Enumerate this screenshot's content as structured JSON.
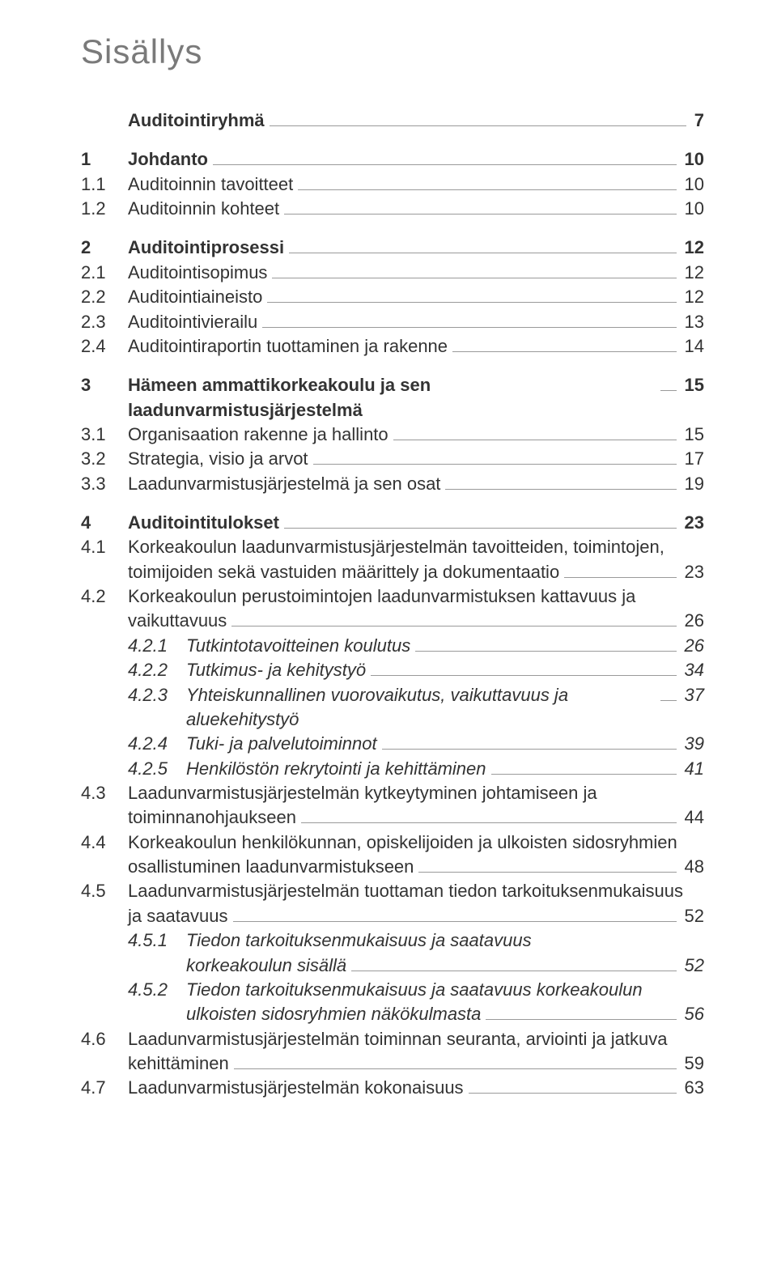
{
  "title": "Sisällys",
  "colors": {
    "title": "#7a7a7a",
    "text": "#333333",
    "leader": "#9a9a9a",
    "bg": "#ffffff"
  },
  "typography": {
    "title_fontsize": 42,
    "body_fontsize": 22,
    "line_height": 1.38
  },
  "toc": [
    {
      "type": "row",
      "bold": true,
      "num": "",
      "label": "Auditointiryhmä",
      "page": "7"
    },
    {
      "type": "spacer"
    },
    {
      "type": "row",
      "bold": true,
      "num": "1",
      "label": "Johdanto",
      "page": "10"
    },
    {
      "type": "row",
      "num": "1.1",
      "label": "Auditoinnin tavoitteet",
      "page": "10"
    },
    {
      "type": "row",
      "num": "1.2",
      "label": "Auditoinnin kohteet",
      "page": "10"
    },
    {
      "type": "spacer"
    },
    {
      "type": "row",
      "bold": true,
      "num": "2",
      "label": "Auditointiprosessi",
      "page": "12"
    },
    {
      "type": "row",
      "num": "2.1",
      "label": "Auditointisopimus",
      "page": "12"
    },
    {
      "type": "row",
      "num": "2.2",
      "label": "Auditointiaineisto",
      "page": "12"
    },
    {
      "type": "row",
      "num": "2.3",
      "label": "Auditointivierailu",
      "page": "13"
    },
    {
      "type": "row",
      "num": "2.4",
      "label": "Auditointiraportin tuottaminen ja rakenne",
      "page": "14"
    },
    {
      "type": "spacer"
    },
    {
      "type": "row",
      "bold": true,
      "num": "3",
      "label": "Hämeen ammattikorkeakoulu ja sen laadunvarmistusjärjestelmä",
      "page": "15"
    },
    {
      "type": "row",
      "num": "3.1",
      "label": "Organisaation rakenne ja hallinto",
      "page": "15"
    },
    {
      "type": "row",
      "num": "3.2",
      "label": "Strategia, visio ja arvot",
      "page": "17"
    },
    {
      "type": "row",
      "num": "3.3",
      "label": "Laadunvarmistusjärjestelmä ja sen osat",
      "page": "19"
    },
    {
      "type": "spacer"
    },
    {
      "type": "row",
      "bold": true,
      "num": "4",
      "label": "Auditointitulokset",
      "page": "23"
    },
    {
      "type": "row-noleader",
      "num": "4.1",
      "label": "Korkeakoulun laadunvarmistusjärjestelmän tavoitteiden, toimintojen,"
    },
    {
      "type": "row",
      "cont": true,
      "num": "",
      "label": "toimijoiden sekä vastuiden määrittely ja dokumentaatio",
      "page": "23"
    },
    {
      "type": "row-noleader",
      "num": "4.2",
      "label": "Korkeakoulun perustoimintojen laadunvarmistuksen kattavuus ja"
    },
    {
      "type": "row",
      "cont": true,
      "num": "",
      "label": "vaikuttavuus",
      "page": "26"
    },
    {
      "type": "row",
      "sub": true,
      "italic": true,
      "num": "4.2.1",
      "label": "Tutkintotavoitteinen koulutus",
      "page": "26"
    },
    {
      "type": "row",
      "sub": true,
      "italic": true,
      "num": "4.2.2",
      "label": "Tutkimus- ja kehitystyö",
      "page": "34"
    },
    {
      "type": "row",
      "sub": true,
      "italic": true,
      "num": "4.2.3",
      "label": "Yhteiskunnallinen vuorovaikutus, vaikuttavuus ja aluekehitystyö",
      "page": "37"
    },
    {
      "type": "row",
      "sub": true,
      "italic": true,
      "num": "4.2.4",
      "label": "Tuki- ja palvelutoiminnot",
      "page": "39"
    },
    {
      "type": "row",
      "sub": true,
      "italic": true,
      "num": "4.2.5",
      "label": "Henkilöstön rekrytointi ja kehittäminen",
      "page": "41"
    },
    {
      "type": "row-noleader",
      "num": "4.3",
      "label": "Laadunvarmistusjärjestelmän kytkeytyminen johtamiseen ja"
    },
    {
      "type": "row",
      "cont": true,
      "num": "",
      "label": "toiminnanohjaukseen",
      "page": "44"
    },
    {
      "type": "row-noleader",
      "num": "4.4",
      "label": "Korkeakoulun henkilökunnan, opiskelijoiden ja ulkoisten sidosryhmien"
    },
    {
      "type": "row",
      "cont": true,
      "num": "",
      "label": "osallistuminen laadunvarmistukseen",
      "page": "48"
    },
    {
      "type": "row-noleader",
      "num": "4.5",
      "label": "Laadunvarmistusjärjestelmän tuottaman tiedon tarkoituksenmukaisuus"
    },
    {
      "type": "row",
      "cont": true,
      "num": "",
      "label": "ja saatavuus",
      "page": "52"
    },
    {
      "type": "row-noleader",
      "sub": true,
      "italic": true,
      "num": "4.5.1",
      "label": "Tiedon tarkoituksenmukaisuus ja saatavuus"
    },
    {
      "type": "row",
      "subcont": true,
      "italic": true,
      "num": "",
      "label": "korkeakoulun sisällä",
      "page": "52"
    },
    {
      "type": "row-noleader",
      "sub": true,
      "italic": true,
      "num": "4.5.2",
      "label": "Tiedon tarkoituksenmukaisuus ja saatavuus korkeakoulun"
    },
    {
      "type": "row",
      "subcont": true,
      "italic": true,
      "num": "",
      "label": "ulkoisten sidosryhmien näkökulmasta",
      "page": "56"
    },
    {
      "type": "row-noleader",
      "num": "4.6",
      "label": "Laadunvarmistusjärjestelmän toiminnan seuranta, arviointi ja jatkuva"
    },
    {
      "type": "row",
      "cont": true,
      "num": "",
      "label": "kehittäminen",
      "page": "59"
    },
    {
      "type": "row",
      "num": "4.7",
      "label": "Laadunvarmistusjärjestelmän kokonaisuus",
      "page": "63"
    }
  ]
}
